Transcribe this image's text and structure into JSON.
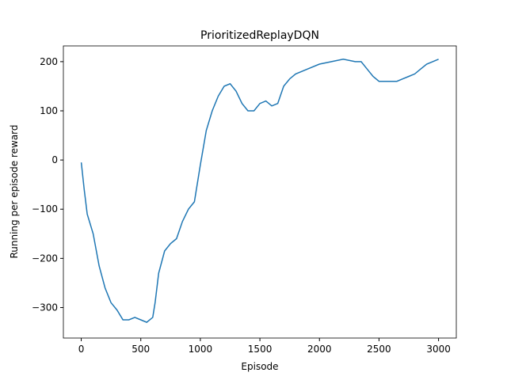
{
  "chart_data": {
    "type": "line",
    "title": "PrioritizedReplayDQN",
    "x_label": "Episode",
    "y_label": "Running per episode reward",
    "x": [
      0,
      25,
      50,
      100,
      150,
      200,
      250,
      300,
      350,
      400,
      450,
      500,
      550,
      600,
      620,
      650,
      700,
      750,
      800,
      850,
      900,
      950,
      1000,
      1050,
      1100,
      1150,
      1200,
      1250,
      1300,
      1350,
      1400,
      1450,
      1500,
      1550,
      1600,
      1650,
      1700,
      1750,
      1800,
      1850,
      1900,
      2000,
      2100,
      2200,
      2300,
      2350,
      2400,
      2450,
      2500,
      2550,
      2600,
      2650,
      2700,
      2750,
      2800,
      2850,
      2900,
      2950,
      3000
    ],
    "series": [
      {
        "name": "PrioritizedReplayDQN",
        "color": "#1f77b4",
        "values": [
          -5,
          -60,
          -110,
          -150,
          -215,
          -260,
          -290,
          -305,
          -325,
          -325,
          -320,
          -325,
          -330,
          -320,
          -290,
          -230,
          -185,
          -170,
          -160,
          -125,
          -100,
          -85,
          -10,
          60,
          100,
          130,
          150,
          155,
          140,
          115,
          100,
          100,
          115,
          120,
          110,
          115,
          150,
          165,
          175,
          180,
          185,
          195,
          200,
          205,
          200,
          200,
          185,
          170,
          160,
          160,
          160,
          160,
          165,
          170,
          175,
          185,
          195,
          200,
          205
        ]
      }
    ],
    "xlim": [
      -150,
      3149
    ],
    "ylim": [
      -362,
      232
    ],
    "xticks": [
      0,
      500,
      1000,
      1500,
      2000,
      2500,
      3000
    ],
    "yticks": [
      {
        "value": -300,
        "label": "−300"
      },
      {
        "value": -200,
        "label": "−200"
      },
      {
        "value": -100,
        "label": "−100"
      },
      0,
      100,
      200
    ]
  }
}
